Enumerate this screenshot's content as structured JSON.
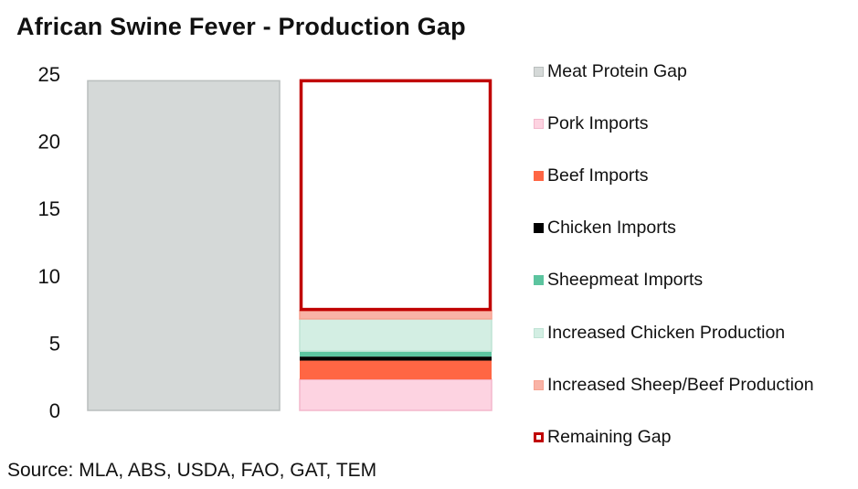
{
  "title": "African Swine Fever - Production Gap",
  "source": "Source: MLA, ABS, USDA, FAO, GAT, TEM",
  "chart_data": {
    "type": "bar",
    "stacked": true,
    "title": "African Swine Fever - Production Gap",
    "xlabel": "",
    "ylabel": "",
    "ylim": [
      0,
      25
    ],
    "yticks": [
      "0",
      "5",
      "10",
      "15",
      "20",
      "25"
    ],
    "grid": false,
    "legend_position": "right",
    "total_bar": {
      "name": "Meat Protein Gap",
      "value": 24.5,
      "color": "#d5d9d8",
      "border": "#b9bebd"
    },
    "series": [
      {
        "name": "Pork Imports",
        "value": 2.3,
        "color": "#fdd3e1",
        "border": "#f3b7cc"
      },
      {
        "name": "Beef Imports",
        "value": 1.4,
        "color": "#ff6644",
        "border": "#ff6644"
      },
      {
        "name": "Chicken Imports",
        "value": 0.3,
        "color": "#000000",
        "border": "#000000"
      },
      {
        "name": "Sheepmeat Imports",
        "value": 0.4,
        "color": "#5cc49f",
        "border": "#5cc49f"
      },
      {
        "name": "Increased Chicken Production",
        "value": 2.4,
        "color": "#d3eee3",
        "border": "#bfe3d4"
      },
      {
        "name": "Increased Sheep/Beef Production",
        "value": 0.6,
        "color": "#f9b3a6",
        "border": "#f7a392"
      },
      {
        "name": "Remaining Gap",
        "value": 17.1,
        "color": "#ffffff",
        "border": "#c00000",
        "outline": true
      }
    ]
  }
}
